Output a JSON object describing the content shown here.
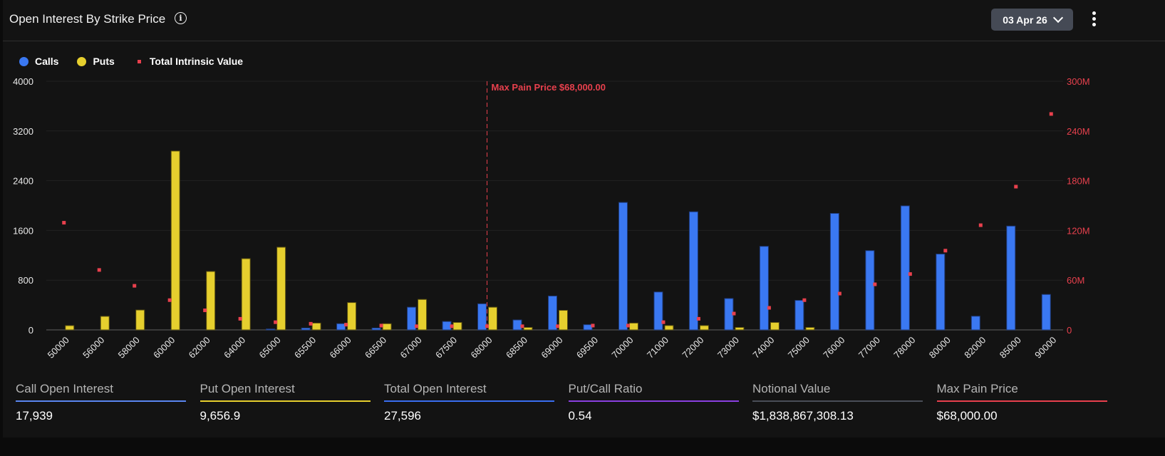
{
  "header": {
    "title": "Open Interest By Strike Price",
    "info_icon": "info-circle-icon",
    "date_selector": "03 Apr 26",
    "menu_icon": "kebab-menu-icon"
  },
  "legend": [
    {
      "label": "Calls",
      "color": "#3a78f2"
    },
    {
      "label": "Puts",
      "color": "#e6cf2e"
    },
    {
      "label": "Total Intrinsic Value",
      "color": "#e8404d"
    }
  ],
  "chart_data": {
    "type": "bar",
    "categories": [
      "50000",
      "56000",
      "58000",
      "60000",
      "62000",
      "64000",
      "65000",
      "65500",
      "66000",
      "66500",
      "67000",
      "67500",
      "68000",
      "68500",
      "69000",
      "69500",
      "70000",
      "71000",
      "72000",
      "73000",
      "74000",
      "75000",
      "76000",
      "77000",
      "78000",
      "80000",
      "82000",
      "85000",
      "90000"
    ],
    "series": [
      {
        "name": "Calls",
        "type": "bar",
        "axis": "left",
        "color": "#3a78f2",
        "values": [
          0,
          0,
          0,
          0,
          0,
          0,
          15,
          30,
          100,
          30,
          365,
          135,
          420,
          160,
          545,
          84,
          2050,
          610,
          1900,
          505,
          1344,
          475,
          1874,
          1275,
          1995,
          1220,
          220,
          1670,
          570
        ]
      },
      {
        "name": "Puts",
        "type": "bar",
        "axis": "left",
        "color": "#e6cf2e",
        "values": [
          69,
          218,
          320,
          2877,
          940,
          1146,
          1330,
          110,
          440,
          100,
          490,
          120,
          365,
          40,
          315,
          0,
          110,
          70,
          70,
          40,
          120,
          40,
          0,
          0,
          0,
          0,
          0,
          0,
          0
        ]
      },
      {
        "name": "Total Intrinsic Value",
        "type": "scatter",
        "axis": "right",
        "color": "#e8404d",
        "values": [
          129.3,
          72.3,
          53.2,
          35.9,
          23.6,
          13.4,
          9.3,
          7.4,
          6.3,
          5.2,
          4.4,
          4.4,
          4.4,
          4.4,
          4.4,
          5.2,
          5.2,
          9.3,
          13.4,
          19.7,
          26.6,
          35.9,
          43.8,
          55,
          67.4,
          95.6,
          126.3,
          172.8,
          260.5
        ]
      }
    ],
    "left_axis": {
      "ylim": [
        0,
        4000
      ],
      "ticks": [
        "0",
        "800",
        "1600",
        "2400",
        "3200",
        "4000"
      ]
    },
    "right_axis": {
      "ylim": [
        0,
        300
      ],
      "unit": "M",
      "ticks": [
        "0",
        "60M",
        "120M",
        "180M",
        "240M",
        "300M"
      ]
    },
    "grid": true,
    "legend_position": "top-left",
    "annotation": {
      "category": "68000",
      "label": "Max Pain Price $68,000.00",
      "color": "#e8404d"
    }
  },
  "stats": [
    {
      "label": "Call Open Interest",
      "value": "17,939",
      "color": "#5a86f0"
    },
    {
      "label": "Put Open Interest",
      "value": "9,656.9",
      "color": "#e6cf2e"
    },
    {
      "label": "Total Open Interest",
      "value": "27,596",
      "color": "#3a6ef0"
    },
    {
      "label": "Put/Call Ratio",
      "value": "0.54",
      "color": "#8a3fe0"
    },
    {
      "label": "Notional Value",
      "value": "$1,838,867,308.13",
      "color": "#4a4e58"
    },
    {
      "label": "Max Pain Price",
      "value": "$68,000.00",
      "color": "#e8404d"
    }
  ]
}
